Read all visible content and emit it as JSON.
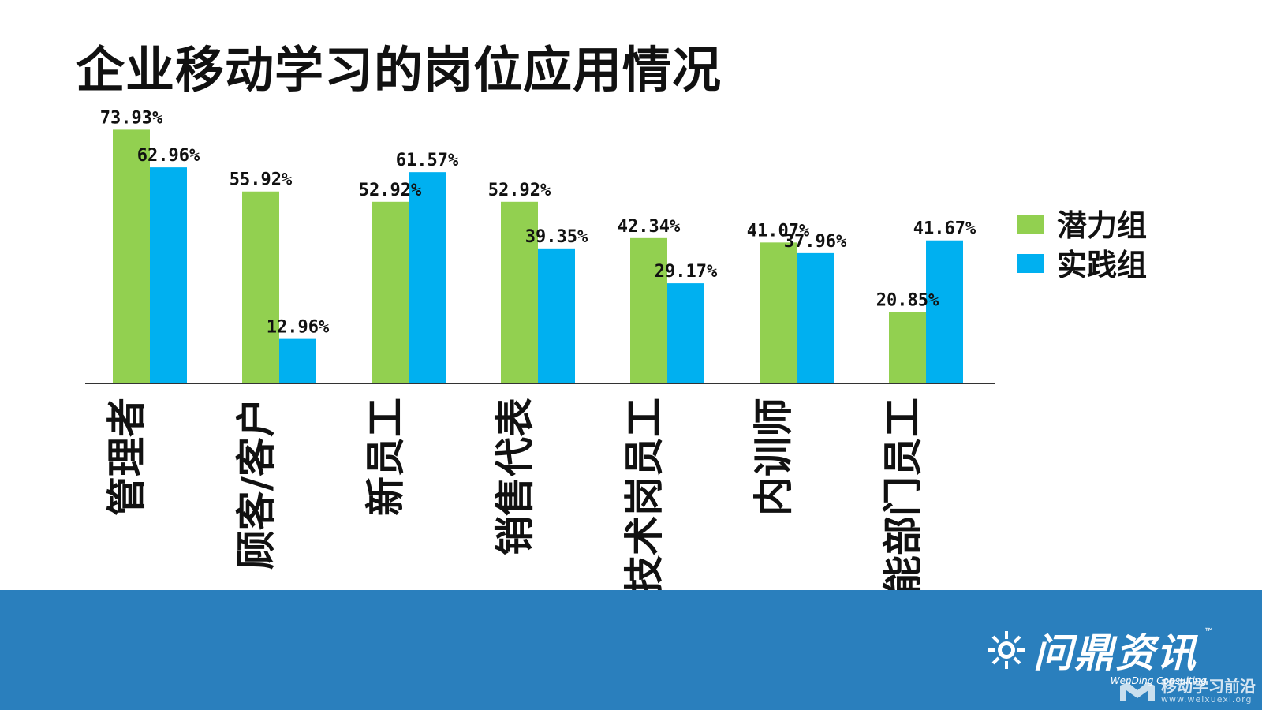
{
  "slide": {
    "title": "企业移动学习的岗位应用情况"
  },
  "chart_data": {
    "type": "bar",
    "title": "企业移动学习的岗位应用情况",
    "categories": [
      "管理者",
      "顾客/客户",
      "新员工",
      "销售代表",
      "技术岗员工",
      "内训师",
      "职能部门员工"
    ],
    "series": [
      {
        "name": "潜力组",
        "color": "#92d050",
        "values": [
          73.93,
          55.92,
          52.92,
          52.92,
          42.34,
          41.07,
          20.85
        ],
        "labels": [
          "73.93%",
          "55.92%",
          "52.92%",
          "52.92%",
          "42.34%",
          "41.07%",
          "20.85%"
        ]
      },
      {
        "name": "实践组",
        "color": "#00b0f0",
        "values": [
          62.96,
          12.96,
          61.57,
          39.35,
          29.17,
          37.96,
          41.67
        ],
        "labels": [
          "62.96%",
          "12.96%",
          "61.57%",
          "39.35%",
          "29.17%",
          "37.96%",
          "41.67%"
        ]
      }
    ],
    "ylim": [
      0,
      75
    ],
    "xlabel": "",
    "ylabel": "",
    "grid": false,
    "legend": "right"
  },
  "footer": {
    "brand_name": "问鼎资讯",
    "brand_tm": "™",
    "brand_sub": "WenDing Consulting",
    "watermark_text": "移动学习前沿",
    "watermark_url": "www.weixuexi.org",
    "icon": "sun-icon"
  }
}
